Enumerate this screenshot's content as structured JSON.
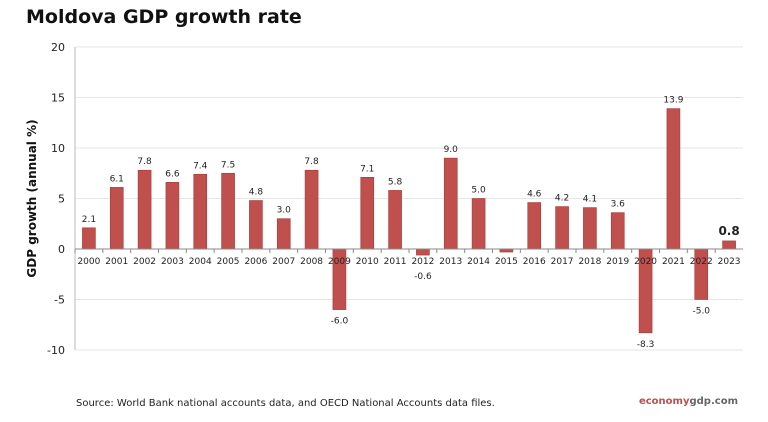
{
  "title": "Moldova GDP growth rate",
  "source": "Source:  World Bank national accounts data, and OECD National Accounts data files.",
  "brand": {
    "part1": "economy",
    "part2": "gdp",
    "part3": ".com"
  },
  "chart_data": {
    "type": "bar",
    "title": "Moldova GDP growth rate",
    "xlabel": "",
    "ylabel": "GDP growth (annual %)",
    "ylim": [
      -10,
      20
    ],
    "yticks": [
      -10,
      -5,
      0,
      5,
      10,
      15,
      20
    ],
    "grid": true,
    "bar_color": "#c0504d",
    "categories": [
      "2000",
      "2001",
      "2002",
      "2003",
      "2004",
      "2005",
      "2006",
      "2007",
      "2008",
      "2009",
      "2010",
      "2011",
      "2012",
      "2013",
      "2014",
      "2015",
      "2016",
      "2017",
      "2018",
      "2019",
      "2020",
      "2021",
      "2022",
      "2023"
    ],
    "values": [
      2.1,
      6.1,
      7.8,
      6.6,
      7.4,
      7.5,
      4.8,
      3.0,
      7.8,
      -6.0,
      7.1,
      5.8,
      -0.6,
      9.0,
      5.0,
      -0.3,
      4.6,
      4.2,
      4.1,
      3.6,
      -8.3,
      13.9,
      -5.0,
      0.8
    ],
    "data_labels": [
      "2.1",
      "6.1",
      "7.8",
      "6.6",
      "7.4",
      "7.5",
      "4.8",
      "3.0",
      "7.8",
      "-6.0",
      "7.1",
      "5.8",
      "-0.6",
      "9.0",
      "5.0",
      "",
      "4.6",
      "4.2",
      "4.1",
      "3.6",
      "-8.3",
      "13.9",
      "-5.0",
      "0.8"
    ]
  }
}
